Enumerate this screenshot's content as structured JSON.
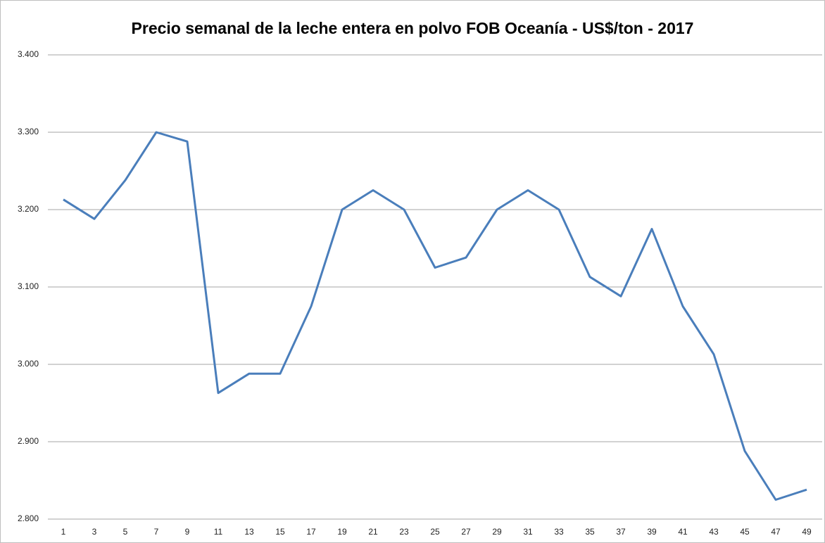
{
  "chart_data": {
    "type": "line",
    "title": "Precio semanal de la leche entera en polvo FOB Oceanía - US$/ton - 2017",
    "categories": [
      "1",
      "3",
      "5",
      "7",
      "9",
      "11",
      "13",
      "15",
      "17",
      "19",
      "21",
      "23",
      "25",
      "27",
      "29",
      "31",
      "33",
      "35",
      "37",
      "39",
      "41",
      "43",
      "45",
      "47",
      "49"
    ],
    "series": [
      {
        "name": "Precio",
        "color": "#4a7ebb",
        "values": [
          3213,
          3188,
          3238,
          3300,
          3288,
          2963,
          2988,
          2988,
          3075,
          3200,
          3225,
          3200,
          3125,
          3138,
          3200,
          3225,
          3200,
          3113,
          3088,
          3175,
          3075,
          3013,
          2888,
          2825,
          2838
        ]
      }
    ],
    "ylim": [
      2800,
      3400
    ],
    "yticks": [
      {
        "value": 2800,
        "label": "2.800"
      },
      {
        "value": 2900,
        "label": "2.900"
      },
      {
        "value": 3000,
        "label": "3.000"
      },
      {
        "value": 3100,
        "label": "3.100"
      },
      {
        "value": 3200,
        "label": "3.200"
      },
      {
        "value": 3300,
        "label": "3.300"
      },
      {
        "value": 3400,
        "label": "3.400"
      }
    ],
    "grid": true
  }
}
